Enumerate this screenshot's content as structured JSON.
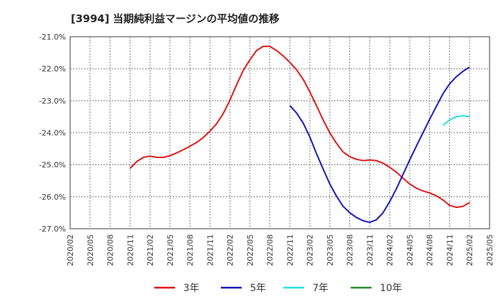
{
  "chart_data": {
    "type": "line",
    "title": "[3994]  当期純利益マージンの平均値の推移",
    "xlabel": "",
    "ylabel": "",
    "x_ticks": [
      "2020/02",
      "2020/05",
      "2020/08",
      "2020/11",
      "2021/02",
      "2021/05",
      "2021/08",
      "2021/11",
      "2022/02",
      "2022/05",
      "2022/08",
      "2022/11",
      "2023/02",
      "2023/05",
      "2023/08",
      "2023/11",
      "2024/02",
      "2024/05",
      "2024/08",
      "2024/11",
      "2025/02",
      "2025/05"
    ],
    "y_ticks": [
      "-21.0%",
      "-22.0%",
      "-23.0%",
      "-24.0%",
      "-25.0%",
      "-26.0%",
      "-27.0%"
    ],
    "ylim": [
      -27.0,
      -21.0
    ],
    "grid": true,
    "legend": "bottom",
    "series": [
      {
        "name": "3年",
        "color": "#dd1111",
        "x": [
          "2020/11",
          "2020/12",
          "2021/01",
          "2021/02",
          "2021/03",
          "2021/04",
          "2021/05",
          "2021/06",
          "2021/07",
          "2021/08",
          "2021/09",
          "2021/10",
          "2021/11",
          "2021/12",
          "2022/01",
          "2022/02",
          "2022/03",
          "2022/04",
          "2022/05",
          "2022/06",
          "2022/07",
          "2022/08",
          "2022/09",
          "2022/10",
          "2022/11",
          "2022/12",
          "2023/01",
          "2023/02",
          "2023/03",
          "2023/04",
          "2023/05",
          "2023/06",
          "2023/07",
          "2023/08",
          "2023/09",
          "2023/10",
          "2023/11",
          "2023/12",
          "2024/01",
          "2024/02",
          "2024/03",
          "2024/04",
          "2024/05",
          "2024/06",
          "2024/07",
          "2024/08",
          "2024/09",
          "2024/10",
          "2024/11",
          "2024/12",
          "2025/01",
          "2025/02"
        ],
        "values": [
          -25.12,
          -24.9,
          -24.77,
          -24.73,
          -24.77,
          -24.77,
          -24.72,
          -24.63,
          -24.53,
          -24.42,
          -24.3,
          -24.15,
          -23.95,
          -23.72,
          -23.4,
          -22.98,
          -22.5,
          -22.05,
          -21.72,
          -21.43,
          -21.3,
          -21.3,
          -21.43,
          -21.6,
          -21.8,
          -22.03,
          -22.33,
          -22.72,
          -23.15,
          -23.6,
          -24.0,
          -24.33,
          -24.6,
          -24.75,
          -24.83,
          -24.87,
          -24.85,
          -24.87,
          -24.95,
          -25.08,
          -25.23,
          -25.42,
          -25.6,
          -25.73,
          -25.82,
          -25.88,
          -25.97,
          -26.1,
          -26.27,
          -26.33,
          -26.3,
          -26.18
        ]
      },
      {
        "name": "5年",
        "color": "#1111bb",
        "x": [
          "2022/11",
          "2022/12",
          "2023/01",
          "2023/02",
          "2023/03",
          "2023/04",
          "2023/05",
          "2023/06",
          "2023/07",
          "2023/08",
          "2023/09",
          "2023/10",
          "2023/11",
          "2023/12",
          "2024/01",
          "2024/02",
          "2024/03",
          "2024/04",
          "2024/05",
          "2024/06",
          "2024/07",
          "2024/08",
          "2024/09",
          "2024/10",
          "2024/11",
          "2024/12",
          "2025/01",
          "2025/02"
        ],
        "values": [
          -23.15,
          -23.38,
          -23.7,
          -24.13,
          -24.65,
          -25.13,
          -25.6,
          -25.98,
          -26.3,
          -26.5,
          -26.65,
          -26.75,
          -26.8,
          -26.72,
          -26.5,
          -26.15,
          -25.75,
          -25.3,
          -24.85,
          -24.42,
          -24.0,
          -23.58,
          -23.18,
          -22.78,
          -22.47,
          -22.25,
          -22.08,
          -21.95
        ]
      },
      {
        "name": "7年",
        "color": "#22dddd",
        "x": [
          "2024/10",
          "2024/11",
          "2024/12",
          "2025/01",
          "2025/02"
        ],
        "values": [
          -23.77,
          -23.6,
          -23.5,
          -23.47,
          -23.5
        ]
      },
      {
        "name": "10年",
        "color": "#228822",
        "x": [],
        "values": []
      }
    ]
  }
}
